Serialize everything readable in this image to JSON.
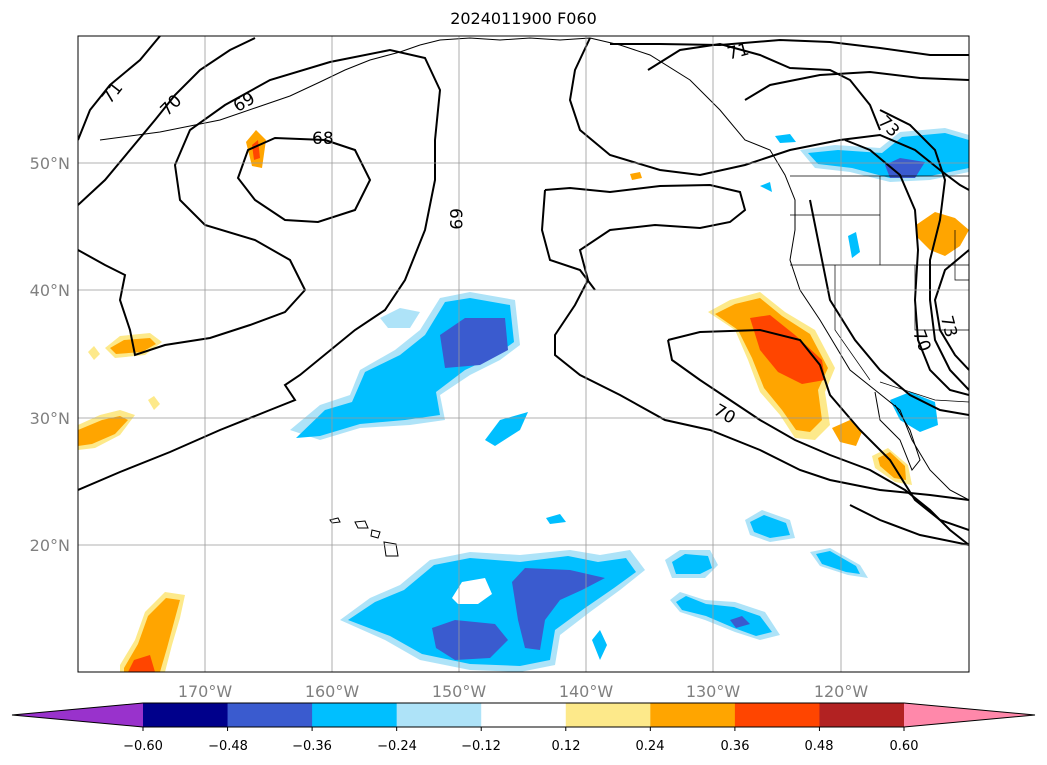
{
  "title": "2024011900 F060",
  "lon_labels": [
    "170°W",
    "160°W",
    "150°W",
    "140°W",
    "130°W",
    "120°W"
  ],
  "lat_labels": [
    "50°N",
    "40°N",
    "30°N",
    "20°N"
  ],
  "contour_labels": [
    "71",
    "70",
    "69",
    "68",
    "69",
    "71",
    "73",
    "70",
    "73",
    "70"
  ],
  "colorbar": {
    "ticks": [
      "−0.60",
      "−0.48",
      "−0.36",
      "−0.24",
      "−0.12",
      "0.12",
      "0.24",
      "0.36",
      "0.48",
      "0.60"
    ],
    "colors": [
      "#9932cc",
      "#00008b",
      "#3a5bcf",
      "#00bfff",
      "#aee3f8",
      "#ffffff",
      "#fde98a",
      "#ffa500",
      "#ff4500",
      "#b22222",
      "#ff88aa"
    ]
  }
}
